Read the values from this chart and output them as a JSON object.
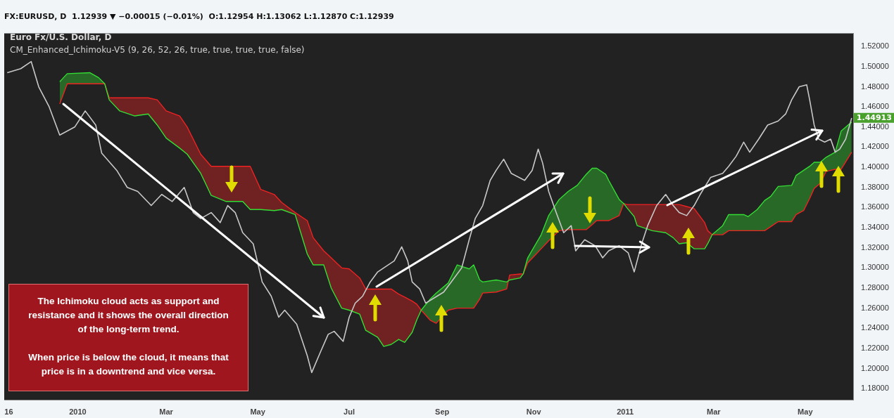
{
  "chart_data": {
    "type": "line",
    "title": "Euro Fx/U.S. Dollar, D",
    "subtitle": "CM_Enhanced_Ichimoku-V5 (9, 26, 52, 26, true, true, true, true, false)",
    "annotations": [
      "FX:EURUSD, D  1.12939 ▼ −0.00015 (−0.01%)  O:1.12954 H:1.13062 L:1.12870 C:1.12939",
      "The Ichimoku cloud acts as support and resistance and it shows the overall direction of the long-term trend.",
      "When price is below the cloud, it means that price is in a downtrend and vice versa.",
      {
        "text": "1.44913",
        "x": "2011-06-01",
        "y": 1.44913
      }
    ],
    "xlim": [
      "2009-11-13",
      "2011-06-02"
    ],
    "xticks": [
      {
        "value": "2009-11-16",
        "label": "16"
      },
      {
        "value": "2010-01-01",
        "label": "2010"
      },
      {
        "value": "2010-03-01",
        "label": "Mar"
      },
      {
        "value": "2010-05-01",
        "label": "May"
      },
      {
        "value": "2010-07-01",
        "label": "Jul"
      },
      {
        "value": "2010-09-01",
        "label": "Sep"
      },
      {
        "value": "2010-11-01",
        "label": "Nov"
      },
      {
        "value": "2011-01-01",
        "label": "2011"
      },
      {
        "value": "2011-03-01",
        "label": "Mar"
      },
      {
        "value": "2011-05-01",
        "label": "May"
      }
    ],
    "ylim": [
      1.169,
      1.533
    ],
    "yticks": [
      {
        "value": 1.18,
        "label": "1.18000"
      },
      {
        "value": 1.2,
        "label": "1.20000"
      },
      {
        "value": 1.22,
        "label": "1.22000"
      },
      {
        "value": 1.24,
        "label": "1.24000"
      },
      {
        "value": 1.26,
        "label": "1.26000"
      },
      {
        "value": 1.28,
        "label": "1.28000"
      },
      {
        "value": 1.3,
        "label": "1.30000"
      },
      {
        "value": 1.32,
        "label": "1.32000"
      },
      {
        "value": 1.34,
        "label": "1.34000"
      },
      {
        "value": 1.36,
        "label": "1.36000"
      },
      {
        "value": 1.38,
        "label": "1.38000"
      },
      {
        "value": 1.4,
        "label": "1.40000"
      },
      {
        "value": 1.42,
        "label": "1.42000"
      },
      {
        "value": 1.44,
        "label": "1.44000"
      },
      {
        "value": 1.46,
        "label": "1.46000"
      },
      {
        "value": 1.48,
        "label": "1.48000"
      },
      {
        "value": 1.5,
        "label": "1.50000"
      },
      {
        "value": 1.52,
        "label": "1.52000"
      }
    ],
    "series": [
      {
        "color": "#c8c8c8",
        "x": [
          "2009-11-15",
          "2009-11-24",
          "2009-12-01",
          "2009-12-06",
          "2009-12-13",
          "2009-12-20",
          "2009-12-30",
          "2010-01-06",
          "2010-01-13",
          "2010-01-17",
          "2010-01-27",
          "2010-02-03",
          "2010-02-10",
          "2010-02-19",
          "2010-02-26",
          "2010-03-05",
          "2010-03-13",
          "2010-03-19",
          "2010-03-24",
          "2010-03-31",
          "2010-04-06",
          "2010-04-11",
          "2010-04-16",
          "2010-04-21",
          "2010-04-28",
          "2010-05-04",
          "2010-05-10",
          "2010-05-15",
          "2010-05-19",
          "2010-05-27",
          "2010-06-03",
          "2010-06-06",
          "2010-06-12",
          "2010-06-17",
          "2010-06-21",
          "2010-06-27",
          "2010-07-01",
          "2010-07-05",
          "2010-07-10",
          "2010-07-15",
          "2010-07-20",
          "2010-07-24",
          "2010-07-31",
          "2010-08-05",
          "2010-08-09",
          "2010-08-12",
          "2010-08-17",
          "2010-08-21",
          "2010-09-02",
          "2010-09-07",
          "2010-09-14",
          "2010-09-19",
          "2010-09-23",
          "2010-09-28",
          "2010-10-03",
          "2010-10-07",
          "2010-10-12",
          "2010-10-17",
          "2010-10-26",
          "2010-10-31",
          "2010-11-04",
          "2010-11-07",
          "2010-11-11",
          "2010-11-16",
          "2010-11-21",
          "2010-11-26",
          "2010-11-29",
          "2010-12-05",
          "2010-12-12",
          "2010-12-17",
          "2010-12-21",
          "2010-12-28",
          "2011-01-03",
          "2011-01-07",
          "2011-01-12",
          "2011-01-16",
          "2011-01-22",
          "2011-01-28",
          "2011-02-02",
          "2011-02-06",
          "2011-02-11",
          "2011-02-16",
          "2011-02-20",
          "2011-02-27",
          "2011-03-07",
          "2011-03-11",
          "2011-03-16",
          "2011-03-21",
          "2011-03-25",
          "2011-03-31",
          "2011-04-06",
          "2011-04-13",
          "2011-04-18",
          "2011-04-22",
          "2011-04-27",
          "2011-05-02",
          "2011-05-04",
          "2011-05-07",
          "2011-05-10",
          "2011-05-14",
          "2011-05-18",
          "2011-05-21",
          "2011-05-24",
          "2011-05-28",
          "2011-06-01"
        ],
        "values": [
          1.494,
          1.498,
          1.505,
          1.48,
          1.46,
          1.432,
          1.44,
          1.456,
          1.442,
          1.414,
          1.397,
          1.38,
          1.376,
          1.362,
          1.373,
          1.366,
          1.38,
          1.355,
          1.349,
          1.355,
          1.345,
          1.362,
          1.355,
          1.335,
          1.324,
          1.286,
          1.272,
          1.251,
          1.258,
          1.244,
          1.213,
          1.196,
          1.217,
          1.234,
          1.237,
          1.227,
          1.251,
          1.265,
          1.272,
          1.286,
          1.296,
          1.3,
          1.307,
          1.321,
          1.307,
          1.286,
          1.279,
          1.265,
          1.276,
          1.286,
          1.3,
          1.328,
          1.349,
          1.362,
          1.387,
          1.397,
          1.408,
          1.394,
          1.387,
          1.397,
          1.418,
          1.404,
          1.376,
          1.355,
          1.335,
          1.342,
          1.317,
          1.328,
          1.322,
          1.31,
          1.317,
          1.322,
          1.315,
          1.296,
          1.324,
          1.342,
          1.362,
          1.373,
          1.362,
          1.355,
          1.352,
          1.362,
          1.373,
          1.39,
          1.394,
          1.401,
          1.411,
          1.425,
          1.415,
          1.428,
          1.442,
          1.446,
          1.453,
          1.467,
          1.48,
          1.482,
          1.467,
          1.442,
          1.428,
          1.425,
          1.428,
          1.415,
          1.418,
          1.428,
          1.449
        ]
      },
      {
        "color": "#33dd33",
        "x": [
          "2009-12-20",
          "2009-12-25",
          "2010-01-09",
          "2010-01-15",
          "2010-01-19",
          "2010-01-22",
          "2010-01-29",
          "2010-02-08",
          "2010-02-17",
          "2010-02-23",
          "2010-03-01",
          "2010-03-10",
          "2010-03-15",
          "2010-03-24",
          "2010-03-31",
          "2010-04-10",
          "2010-04-21",
          "2010-04-26",
          "2010-05-03",
          "2010-05-12",
          "2010-05-17",
          "2010-05-26",
          "2010-06-03",
          "2010-06-07",
          "2010-06-14",
          "2010-06-19",
          "2010-06-26",
          "2010-07-01",
          "2010-07-08",
          "2010-07-12",
          "2010-07-20",
          "2010-07-24",
          "2010-07-29",
          "2010-08-03",
          "2010-08-07",
          "2010-08-12",
          "2010-08-15",
          "2010-08-18",
          "2010-08-24",
          "2010-08-28",
          "2010-09-05",
          "2010-09-11",
          "2010-09-19",
          "2010-09-22",
          "2010-09-26",
          "2010-09-28",
          "2010-10-07",
          "2010-10-14",
          "2010-10-16",
          "2010-10-23",
          "2010-10-25",
          "2010-10-28",
          "2010-11-06",
          "2010-11-11",
          "2010-11-18",
          "2010-11-24",
          "2010-11-30",
          "2010-12-06",
          "2010-12-10",
          "2010-12-13",
          "2010-12-19",
          "2010-12-21",
          "2010-12-28",
          "2010-12-31",
          "2011-01-02",
          "2011-01-07",
          "2011-01-09",
          "2011-01-19",
          "2011-01-28",
          "2011-02-02",
          "2011-02-06",
          "2011-02-11",
          "2011-02-16",
          "2011-02-23",
          "2011-02-25",
          "2011-02-28",
          "2011-03-07",
          "2011-03-11",
          "2011-03-21",
          "2011-03-24",
          "2011-03-30",
          "2011-04-04",
          "2011-04-08",
          "2011-04-13",
          "2011-04-22",
          "2011-04-25",
          "2011-04-30",
          "2011-05-04",
          "2011-05-07",
          "2011-05-11",
          "2011-05-15",
          "2011-05-21",
          "2011-05-25",
          "2011-06-01"
        ],
        "values": [
          1.485,
          1.493,
          1.494,
          1.489,
          1.483,
          1.467,
          1.456,
          1.451,
          1.453,
          1.442,
          1.429,
          1.419,
          1.413,
          1.394,
          1.372,
          1.366,
          1.366,
          1.358,
          1.358,
          1.357,
          1.358,
          1.353,
          1.314,
          1.303,
          1.303,
          1.28,
          1.26,
          1.258,
          1.254,
          1.238,
          1.231,
          1.222,
          1.224,
          1.229,
          1.226,
          1.236,
          1.248,
          1.258,
          1.269,
          1.275,
          1.285,
          1.303,
          1.299,
          1.303,
          1.288,
          1.286,
          1.288,
          1.286,
          1.288,
          1.29,
          1.294,
          1.31,
          1.333,
          1.352,
          1.368,
          1.376,
          1.382,
          1.393,
          1.399,
          1.399,
          1.393,
          1.387,
          1.368,
          1.364,
          1.36,
          1.351,
          1.342,
          1.337,
          1.335,
          1.33,
          1.324,
          1.325,
          1.319,
          1.319,
          1.324,
          1.333,
          1.342,
          1.353,
          1.353,
          1.351,
          1.358,
          1.367,
          1.371,
          1.381,
          1.382,
          1.392,
          1.397,
          1.401,
          1.405,
          1.405,
          1.41,
          1.415,
          1.436,
          1.445
        ]
      },
      {
        "color": "#ee2222",
        "lower": [
          1.485,
          1.493,
          1.494,
          1.489,
          1.483,
          1.467,
          1.456,
          1.451,
          1.453,
          1.442,
          1.429,
          1.419,
          1.413,
          1.394,
          1.372,
          1.366,
          1.366,
          1.358,
          1.358,
          1.357,
          1.358,
          1.353,
          1.314,
          1.303,
          1.303,
          1.28,
          1.26,
          1.258,
          1.254,
          1.238,
          1.231,
          1.222,
          1.224,
          1.229,
          1.226,
          1.236,
          1.248,
          1.258,
          1.269,
          1.275,
          1.285,
          1.303,
          1.299,
          1.303,
          1.288,
          1.286,
          1.288,
          1.286,
          1.288,
          1.29,
          1.294,
          1.31,
          1.333,
          1.352,
          1.368,
          1.376,
          1.382,
          1.393,
          1.399,
          1.399,
          1.393,
          1.387,
          1.368,
          1.364,
          1.36,
          1.351,
          1.342,
          1.337,
          1.335,
          1.33,
          1.324,
          1.325,
          1.319,
          1.319,
          1.324,
          1.333,
          1.342,
          1.353,
          1.353,
          1.351,
          1.358,
          1.367,
          1.371,
          1.381,
          1.382,
          1.392,
          1.397,
          1.401,
          1.405,
          1.405,
          1.41,
          1.415,
          1.436,
          1.445
        ],
        "upper": [
          1.463,
          1.483,
          1.483,
          1.483,
          1.483,
          1.469,
          1.469,
          1.469,
          1.469,
          1.467,
          1.456,
          1.451,
          1.44,
          1.413,
          1.401,
          1.401,
          1.401,
          1.401,
          1.378,
          1.373,
          1.365,
          1.355,
          1.347,
          1.33,
          1.317,
          1.31,
          1.3,
          1.299,
          1.29,
          1.279,
          1.279,
          1.279,
          1.279,
          1.274,
          1.271,
          1.267,
          1.264,
          1.258,
          1.248,
          1.245,
          1.258,
          1.26,
          1.26,
          1.26,
          1.269,
          1.275,
          1.276,
          1.279,
          1.293,
          1.294,
          1.294,
          1.305,
          1.319,
          1.327,
          1.337,
          1.338,
          1.338,
          1.338,
          1.343,
          1.347,
          1.347,
          1.347,
          1.352,
          1.364,
          1.363,
          1.363,
          1.363,
          1.363,
          1.363,
          1.363,
          1.363,
          1.361,
          1.359,
          1.345,
          1.337,
          1.333,
          1.333,
          1.337,
          1.337,
          1.337,
          1.337,
          1.337,
          1.341,
          1.346,
          1.346,
          1.353,
          1.357,
          1.369,
          1.379,
          1.384,
          1.396,
          1.398,
          1.398,
          1.415
        ],
        "x": [
          "2009-12-20",
          "2009-12-25",
          "2010-01-09",
          "2010-01-15",
          "2010-01-19",
          "2010-01-22",
          "2010-01-29",
          "2010-02-08",
          "2010-02-17",
          "2010-02-23",
          "2010-03-01",
          "2010-03-10",
          "2010-03-15",
          "2010-03-24",
          "2010-03-31",
          "2010-04-10",
          "2010-04-21",
          "2010-04-26",
          "2010-05-03",
          "2010-05-12",
          "2010-05-17",
          "2010-05-26",
          "2010-06-03",
          "2010-06-07",
          "2010-06-14",
          "2010-06-19",
          "2010-06-26",
          "2010-07-01",
          "2010-07-08",
          "2010-07-12",
          "2010-07-20",
          "2010-07-24",
          "2010-07-29",
          "2010-08-03",
          "2010-08-07",
          "2010-08-12",
          "2010-08-15",
          "2010-08-18",
          "2010-08-24",
          "2010-08-28",
          "2010-09-05",
          "2010-09-11",
          "2010-09-19",
          "2010-09-22",
          "2010-09-26",
          "2010-09-28",
          "2010-10-07",
          "2010-10-14",
          "2010-10-16",
          "2010-10-23",
          "2010-10-25",
          "2010-10-28",
          "2010-11-06",
          "2010-11-11",
          "2010-11-18",
          "2010-11-24",
          "2010-11-30",
          "2010-12-06",
          "2010-12-10",
          "2010-12-13",
          "2010-12-19",
          "2010-12-21",
          "2010-12-28",
          "2010-12-31",
          "2011-01-02",
          "2011-01-07",
          "2011-01-09",
          "2011-01-19",
          "2011-01-28",
          "2011-02-02",
          "2011-02-06",
          "2011-02-11",
          "2011-02-16",
          "2011-02-23",
          "2011-02-25",
          "2011-02-28",
          "2011-03-07",
          "2011-03-11",
          "2011-03-21",
          "2011-03-24",
          "2011-03-30",
          "2011-04-04",
          "2011-04-08",
          "2011-04-13",
          "2011-04-22",
          "2011-04-25",
          "2011-04-30",
          "2011-05-04",
          "2011-05-07",
          "2011-05-11",
          "2011-05-15",
          "2011-05-21",
          "2011-05-25",
          "2011-06-01"
        ],
        "values": [
          1.463,
          1.483,
          1.483,
          1.483,
          1.483,
          1.469,
          1.469,
          1.469,
          1.469,
          1.467,
          1.456,
          1.451,
          1.44,
          1.413,
          1.401,
          1.401,
          1.401,
          1.401,
          1.378,
          1.373,
          1.365,
          1.355,
          1.347,
          1.33,
          1.317,
          1.31,
          1.3,
          1.299,
          1.29,
          1.279,
          1.279,
          1.279,
          1.279,
          1.274,
          1.271,
          1.267,
          1.264,
          1.258,
          1.248,
          1.245,
          1.258,
          1.26,
          1.26,
          1.26,
          1.269,
          1.275,
          1.276,
          1.279,
          1.293,
          1.294,
          1.294,
          1.305,
          1.319,
          1.327,
          1.337,
          1.338,
          1.338,
          1.338,
          1.343,
          1.347,
          1.347,
          1.347,
          1.352,
          1.364,
          1.363,
          1.363,
          1.363,
          1.363,
          1.363,
          1.363,
          1.363,
          1.361,
          1.359,
          1.345,
          1.337,
          1.333,
          1.333,
          1.337,
          1.337,
          1.337,
          1.337,
          1.337,
          1.341,
          1.346,
          1.346,
          1.353,
          1.357,
          1.369,
          1.379,
          1.384,
          1.396,
          1.398,
          1.398,
          1.415
        ]
      }
    ],
    "grid": false,
    "legend": false
  }
}
